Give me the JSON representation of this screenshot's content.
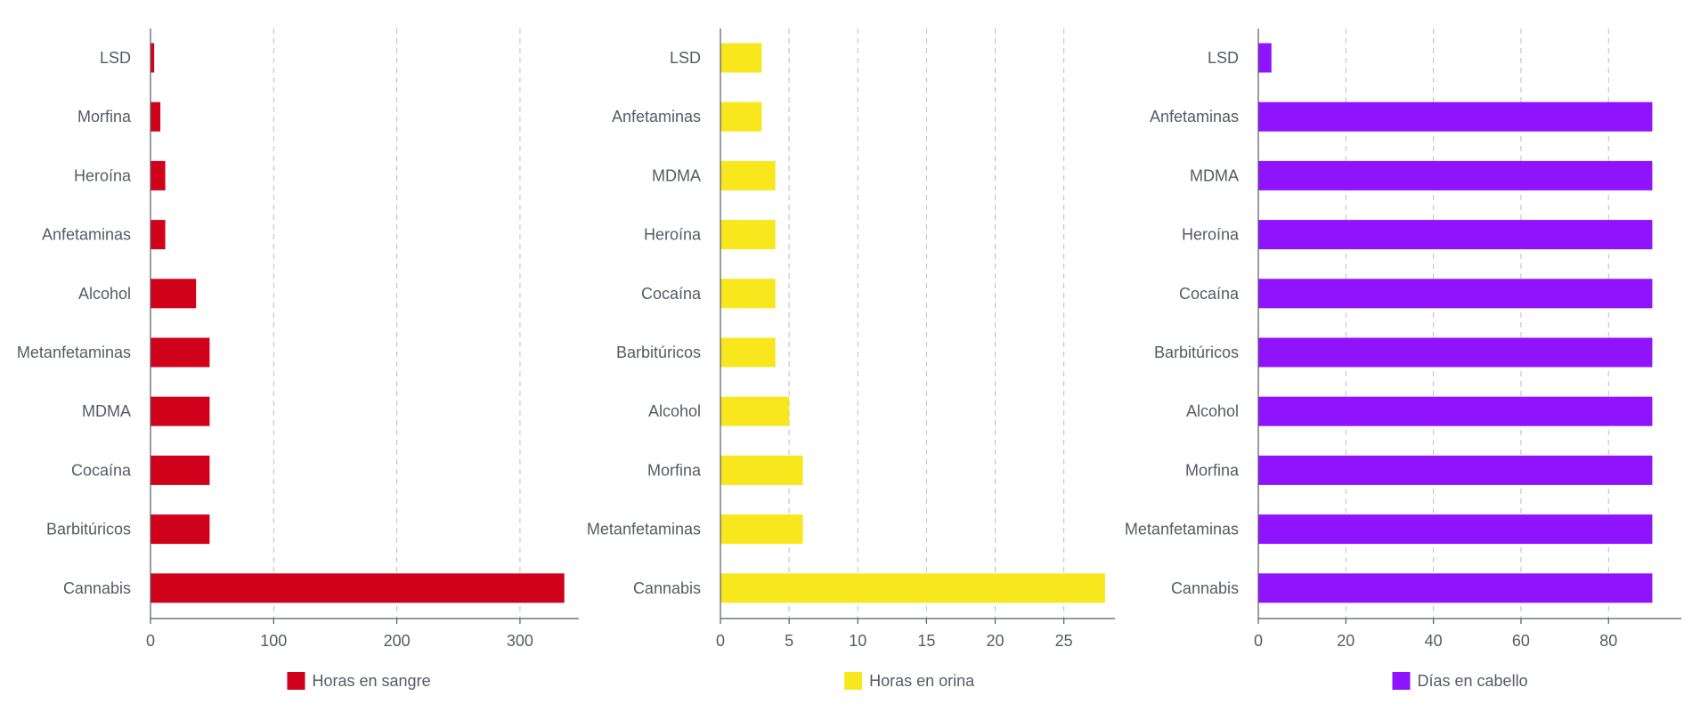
{
  "chart_data": [
    {
      "type": "bar",
      "orientation": "horizontal",
      "categories": [
        "LSD",
        "Morfina",
        "Heroína",
        "Anfetaminas",
        "Alcohol",
        "Metanfetaminas",
        "MDMA",
        "Cocaína",
        "Barbitúricos",
        "Cannabis"
      ],
      "series": [
        {
          "name": "Horas en sangre",
          "color": "#d0021b",
          "values": [
            3,
            8,
            12,
            12,
            37,
            48,
            48,
            48,
            48,
            336
          ]
        }
      ],
      "xlim": [
        0,
        342
      ],
      "xticks": [
        0,
        100,
        200,
        300
      ],
      "grid": true,
      "legend_position": "bottom"
    },
    {
      "type": "bar",
      "orientation": "horizontal",
      "categories": [
        "LSD",
        "Anfetaminas",
        "MDMA",
        "Heroína",
        "Cocaína",
        "Barbitúricos",
        "Alcohol",
        "Morfina",
        "Metanfetaminas",
        "Cannabis"
      ],
      "series": [
        {
          "name": "Horas en orina",
          "color": "#f8e71c",
          "values": [
            3,
            3,
            4,
            4,
            4,
            4,
            5,
            6,
            6,
            28
          ]
        }
      ],
      "xlim": [
        0,
        28.2
      ],
      "xticks": [
        0,
        5,
        10,
        15,
        20,
        25
      ],
      "grid": true,
      "legend_position": "bottom"
    },
    {
      "type": "bar",
      "orientation": "horizontal",
      "categories": [
        "LSD",
        "Anfetaminas",
        "MDMA",
        "Heroína",
        "Cocaína",
        "Barbitúricos",
        "Alcohol",
        "Morfina",
        "Metanfetaminas",
        "Cannabis"
      ],
      "series": [
        {
          "name": "Días en cabello",
          "color": "#9013fe",
          "values": [
            3,
            90,
            90,
            90,
            90,
            90,
            90,
            90,
            90,
            90
          ]
        }
      ],
      "xlim": [
        0,
        95
      ],
      "xticks": [
        0,
        20,
        40,
        60,
        80
      ],
      "grid": true,
      "legend_position": "bottom"
    }
  ]
}
